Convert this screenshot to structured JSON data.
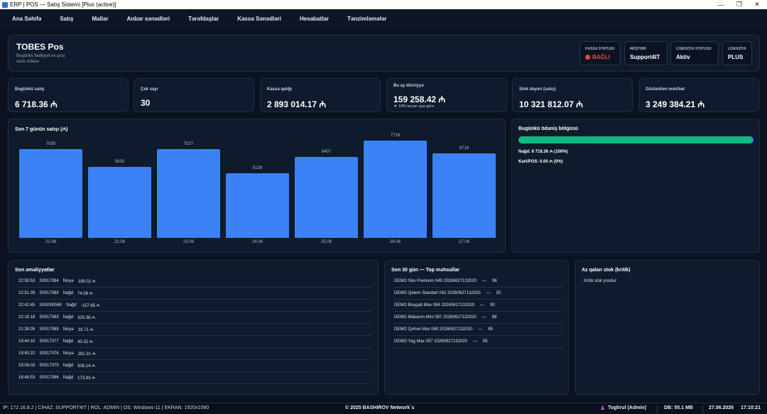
{
  "window": {
    "title": "ERP | POS — Satış Sistemi [Plus (active)]",
    "controls": [
      "—",
      "❐",
      "✕"
    ]
  },
  "menu": [
    "Ana Səhifə",
    "Satış",
    "Mallar",
    "Anbar sənədləri",
    "Tərəfdaşlar",
    "Kassa Sənədləri",
    "Hesabatlar",
    "Tənzimləmələr"
  ],
  "header": {
    "title": "TOBES Pos",
    "subtitle": "Bugünkü fəaliyyət və qısa canlı xülasə",
    "badges": [
      {
        "label": "KASSA STATUSU",
        "value": "BAĞLI",
        "status_color": "#ef4444"
      },
      {
        "label": "MÜŞTƏRİ",
        "value": "Support4IT"
      },
      {
        "label": "LİSENZİYA STATUSU",
        "value": "Aktiv"
      },
      {
        "label": "LİSENZİYA",
        "value": "PLUS"
      }
    ]
  },
  "kpis": [
    {
      "label": "Bugünkü satış",
      "value": "6 718.36 ₼"
    },
    {
      "label": "Çek sayı",
      "value": "30"
    },
    {
      "label": "Kassa qalığı",
      "value": "2 893 014.17 ₼"
    },
    {
      "label": "Bu ay dövriyyə",
      "value": "159 258.42 ₼",
      "sub": "▼ 19% keçən aya görə"
    },
    {
      "label": "Stok dəyəri (satış)",
      "value": "10 321 812.07 ₼"
    },
    {
      "label": "Gözlənilən mənfəət",
      "value": "3 249 384.21 ₼"
    }
  ],
  "chart_data": {
    "type": "bar",
    "title": "Son 7 günün satışı (₼)",
    "categories": [
      "21.06",
      "22.06",
      "23.06",
      "24.06",
      "25.06",
      "26.06",
      "27.06"
    ],
    "values": [
      7055,
      5630,
      7027,
      5139,
      6407,
      7716,
      6718
    ],
    "ylim": [
      0,
      7716
    ],
    "color": "#3b82f6",
    "grid": false
  },
  "payments": {
    "title": "Bugünkü ödəniş bölgüsü",
    "cash_fraction": 1.0,
    "cash_color": "#10b981",
    "cash": "Nağd: 6 718.36 ₼  (100%)",
    "card": "Kart/POS: 0.00 ₼  (0%)"
  },
  "transactions": {
    "title": "Son əməliyyatlar",
    "rows": [
      [
        "22:55:53",
        "S0017084",
        "Nisyə",
        "199.02 ₼"
      ],
      [
        "22:51:39",
        "S0017069",
        "Nağd",
        "74.08 ₼"
      ],
      [
        "22:42:45",
        "SG0000560",
        "Nağd",
        "-157.65 ₼"
      ],
      [
        "22:16:18",
        "S0017083",
        "Nağd",
        "325.38 ₼"
      ],
      [
        "21:39:26",
        "S0017089",
        "Nisyə",
        "18.71 ₼"
      ],
      [
        "19:44:10",
        "S0017077",
        "Nağd",
        "43.32 ₼"
      ],
      [
        "19:40:22",
        "S0017076",
        "Nisyə",
        "261.31 ₼"
      ],
      [
        "19:06:03",
        "S0017070",
        "Nağd",
        "506.14 ₼"
      ],
      [
        "18:48:53",
        "S0017086",
        "Nağd",
        "173.93 ₼"
      ]
    ]
  },
  "top_products": {
    "title": "Son 30 gün — Top məhsullar",
    "rows": [
      [
        "DEMO Sire Premium 049 20260627132020",
        "—",
        "96"
      ],
      [
        "DEMO Qelem Standart 042 20260627132020",
        "—",
        "92"
      ],
      [
        "DEMO Boşqab Max 084 20260627132020",
        "—",
        "90"
      ],
      [
        "DEMO Makaron Mini 097 20260627132020",
        "—",
        "88"
      ],
      [
        "DEMO Qehve Max 069 20260627132020",
        "—",
        "85"
      ],
      [
        "DEMO Yag Max 057 20260627132020",
        "—",
        "85"
      ]
    ]
  },
  "low_stock": {
    "title": "Az qalan stok (kritik)",
    "message": "Kritik stok yoxdur"
  },
  "statusbar": {
    "info": "IP: 172.16.8.2 | CİHAZ: SUPPORT4IT | ROL: ADMIN | OS: Windows-11 | EKRAN: 1920x1080",
    "copyright": "© 2025 BASHIROV Network`s",
    "user": "Toghrul (Admin)",
    "db": "DB: 55.1 MB",
    "date": "27.06.2026",
    "time": "17:10:21"
  }
}
